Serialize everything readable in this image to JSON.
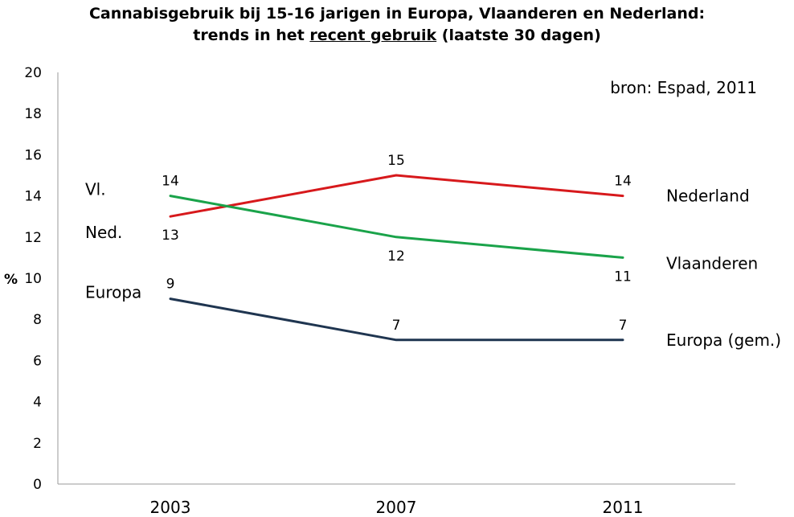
{
  "title": {
    "line1": "Cannabisgebruik bij 15-16 jarigen in Europa, Vlaanderen en Nederland:",
    "line2_before": "trends in het ",
    "line2_underlined": "recent gebruik",
    "line2_after": " (laatste 30 dagen)"
  },
  "source_note": "bron: Espad, 2011",
  "chart_data": {
    "type": "line",
    "title": "Cannabisgebruik bij 15-16 jarigen in Europa, Vlaanderen en Nederland: trends in het recent gebruik (laatste 30 dagen)",
    "xlabel": "",
    "ylabel": "%",
    "categories": [
      "2003",
      "2007",
      "2011"
    ],
    "ylim": [
      0,
      20
    ],
    "y_ticks": [
      "0",
      "2",
      "4",
      "6",
      "8",
      "10",
      "12",
      "14",
      "16",
      "18",
      "20"
    ],
    "grid": false,
    "series": [
      {
        "name": "Nederland",
        "start_label": "Ned.",
        "color": "#d7191c",
        "values": [
          13,
          15,
          14
        ],
        "value_labels": [
          "13",
          "15",
          "14"
        ],
        "label_pos": [
          "below",
          "above",
          "above"
        ]
      },
      {
        "name": "Vlaanderen",
        "start_label": "Vl.",
        "color": "#1aa34a",
        "values": [
          14,
          12,
          11
        ],
        "value_labels": [
          "14",
          "12",
          "11"
        ],
        "label_pos": [
          "above",
          "below",
          "below"
        ]
      },
      {
        "name": "Europa (gem.)",
        "start_label": "Europa",
        "color": "#1f3550",
        "values": [
          9,
          7,
          7
        ],
        "value_labels": [
          "9",
          "7",
          "7"
        ],
        "label_pos": [
          "above",
          "above",
          "above"
        ]
      }
    ]
  }
}
